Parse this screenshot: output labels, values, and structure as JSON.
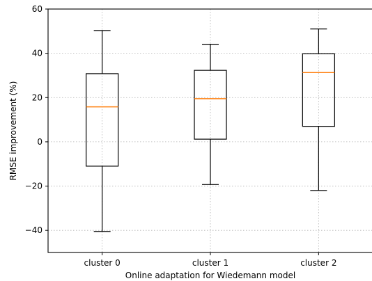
{
  "chart_data": {
    "type": "boxplot",
    "xlabel": "Online adaptation for Wiedemann model",
    "ylabel": "RMSE improvement (%)",
    "ylim": [
      -50,
      60
    ],
    "yticks": [
      -40,
      -20,
      0,
      20,
      40,
      60
    ],
    "grid": true,
    "categories": [
      "cluster 0",
      "cluster 1",
      "cluster 2"
    ],
    "boxes": [
      {
        "whisker_low": -40.5,
        "q1": -11,
        "median": 15.8,
        "q3": 30.8,
        "whisker_high": 50.3
      },
      {
        "whisker_low": -19.3,
        "q1": 1.2,
        "median": 19.5,
        "q3": 32.3,
        "whisker_high": 44.1
      },
      {
        "whisker_low": -22,
        "q1": 7,
        "median": 31.3,
        "q3": 39.8,
        "whisker_high": 51
      }
    ],
    "colors": {
      "box": "#000000",
      "median": "#ff7f0e",
      "grid": "#b0b0b0"
    }
  }
}
